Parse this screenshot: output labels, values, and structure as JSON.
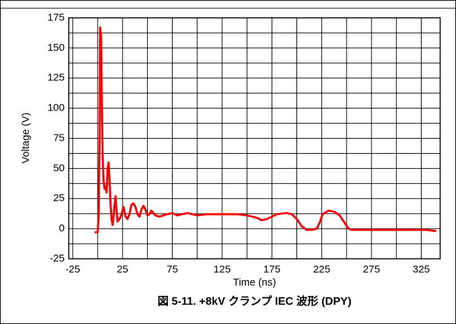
{
  "chart_data": {
    "type": "line",
    "title": "図 5-11. +8kV クランプ IEC 波形 (DPY)",
    "x_label": "Time (ns)",
    "y_label": "Voltage (V)",
    "xlim": [
      -29,
      344
    ],
    "ylim": [
      -25,
      175
    ],
    "xticks": [
      -25,
      25,
      75,
      125,
      175,
      225,
      275,
      325
    ],
    "xminorticks": [
      0,
      50,
      100,
      150,
      200,
      250,
      300
    ],
    "yticks": [
      -25,
      0,
      25,
      50,
      75,
      100,
      125,
      150,
      175
    ],
    "yminorticks": [
      -12.5,
      12.5,
      37.5,
      62.5,
      87.5,
      112.5,
      137.5,
      162.5
    ],
    "grid": true,
    "series": [
      {
        "name": "Voltage",
        "color": "#ff0000",
        "x": [
          -3,
          0,
          1,
          2,
          2.5,
          3.5,
          4,
          5,
          6,
          7,
          8,
          9,
          10,
          11,
          12,
          13,
          14,
          15,
          16,
          17,
          18,
          19,
          20,
          22,
          24,
          26,
          28,
          30,
          32,
          34,
          36,
          38,
          40,
          42,
          44,
          46,
          48,
          50,
          52,
          54,
          56,
          58,
          62,
          66,
          70,
          75,
          80,
          85,
          90,
          95,
          100,
          110,
          120,
          130,
          140,
          150,
          160,
          165,
          170,
          175,
          180,
          190,
          195,
          200,
          205,
          210,
          215,
          220,
          223,
          226,
          232,
          238,
          243,
          248,
          252,
          255,
          270,
          290,
          310,
          330,
          340
        ],
        "values": [
          -3,
          -3,
          10,
          80,
          167,
          160,
          120,
          60,
          40,
          33,
          35,
          30,
          50,
          55,
          40,
          20,
          8,
          3,
          10,
          20,
          27,
          15,
          6,
          8,
          12,
          18,
          10,
          8,
          12,
          20,
          21,
          18,
          12,
          10,
          16,
          19,
          16,
          11,
          12,
          15,
          13,
          11,
          10,
          11,
          12,
          13,
          11,
          12,
          13,
          12,
          11,
          12,
          12,
          12,
          12,
          11,
          9,
          7,
          8,
          10,
          12,
          13,
          12,
          8,
          2,
          -1,
          -1,
          0,
          5,
          12,
          15,
          14,
          11,
          5,
          0,
          -1,
          -1,
          -1,
          -1,
          -1,
          -2
        ]
      }
    ]
  }
}
